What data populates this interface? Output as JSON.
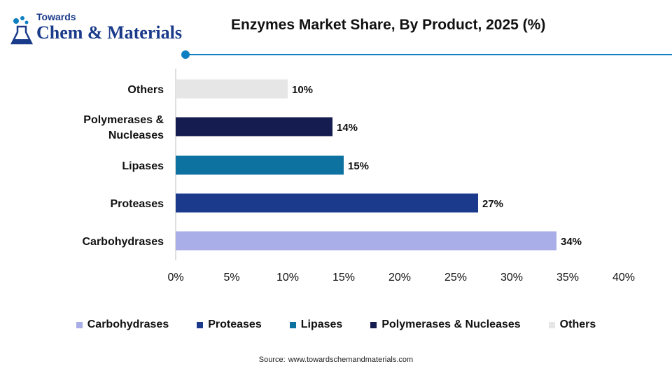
{
  "logo": {
    "line1": "Towards",
    "line2": "Chem & Materials"
  },
  "source": {
    "label": "Source:",
    "url": "www.towardschemandmaterials.com"
  },
  "colors": {
    "accent": "#0e7fc0",
    "logo_blue": "#1a3a8a"
  },
  "chart_data": {
    "type": "bar",
    "orientation": "horizontal",
    "title": "Enzymes Market Share, By Product, 2025 (%)",
    "xlabel": "",
    "ylabel": "",
    "categories": [
      "Carbohydrases",
      "Proteases",
      "Lipases",
      "Polymerases & Nucleases",
      "Others"
    ],
    "category_lines": [
      [
        "Carbohydrases"
      ],
      [
        "Proteases"
      ],
      [
        "Lipases"
      ],
      [
        "Polymerases &",
        "Nucleases"
      ],
      [
        "Others"
      ]
    ],
    "values": [
      34,
      27,
      15,
      14,
      10
    ],
    "value_labels": [
      "34%",
      "27%",
      "15%",
      "14%",
      "10%"
    ],
    "colors": [
      "#aaaee8",
      "#1b3a8c",
      "#0d72a0",
      "#151c4f",
      "#e6e6e6"
    ],
    "xlim": [
      0,
      40
    ],
    "xticks": [
      0,
      5,
      10,
      15,
      20,
      25,
      30,
      35,
      40
    ],
    "xtick_labels": [
      "0%",
      "5%",
      "10%",
      "15%",
      "20%",
      "25%",
      "30%",
      "35%",
      "40%"
    ],
    "grid": false,
    "legend": {
      "position": "bottom",
      "entries": [
        "Carbohydrases",
        "Proteases",
        "Lipases",
        "Polymerases & Nucleases",
        "Others"
      ]
    }
  }
}
